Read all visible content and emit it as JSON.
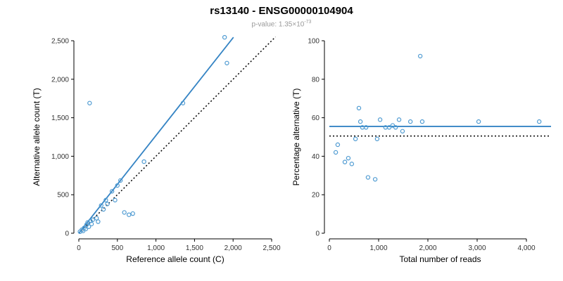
{
  "header": {
    "title": "rs13140 - ENSG00000104904",
    "pvalue_prefix": "p-value: ",
    "pvalue_base": "1.35×10",
    "pvalue_exponent": "-73"
  },
  "colors": {
    "accent_line": "#3584c4",
    "point_stroke": "#4f9bd2",
    "dotted_line": "#000000",
    "axis": "#000000",
    "tick_text": "#333333",
    "label_text": "#000000",
    "subtitle_text": "#999999"
  },
  "chart_data": [
    {
      "type": "scatter",
      "panel": "left",
      "xlabel": "Reference allele count (C)",
      "ylabel": "Alternative allele count (T)",
      "xlim": [
        0,
        2500
      ],
      "ylim": [
        0,
        2500
      ],
      "xticks": [
        0,
        500,
        1000,
        1500,
        2000,
        2500
      ],
      "yticks": [
        0,
        500,
        1000,
        1500,
        2000,
        2500
      ],
      "grid": false,
      "legend": "none",
      "points": [
        [
          15,
          20
        ],
        [
          40,
          45
        ],
        [
          55,
          30
        ],
        [
          70,
          70
        ],
        [
          90,
          55
        ],
        [
          100,
          110
        ],
        [
          115,
          140
        ],
        [
          130,
          85
        ],
        [
          150,
          160
        ],
        [
          165,
          120
        ],
        [
          180,
          175
        ],
        [
          230,
          195
        ],
        [
          250,
          150
        ],
        [
          140,
          1690
        ],
        [
          290,
          360
        ],
        [
          320,
          310
        ],
        [
          350,
          430
        ],
        [
          370,
          380
        ],
        [
          430,
          545
        ],
        [
          470,
          430
        ],
        [
          500,
          620
        ],
        [
          540,
          685
        ],
        [
          590,
          270
        ],
        [
          650,
          240
        ],
        [
          700,
          255
        ],
        [
          845,
          930
        ],
        [
          1350,
          1690
        ],
        [
          1890,
          2545
        ],
        [
          1920,
          2210
        ]
      ],
      "regression_line": {
        "x1": 0,
        "y1": 0,
        "x2": 2005,
        "y2": 2545
      },
      "identity_line": {
        "x1": 0,
        "y1": 0,
        "x2": 2550,
        "y2": 2550
      }
    },
    {
      "type": "scatter",
      "panel": "right",
      "xlabel": "Total number of reads",
      "ylabel": "Percentage alternative (T)",
      "xlim": [
        0,
        4500
      ],
      "ylim": [
        0,
        100
      ],
      "xticks": [
        0,
        1000,
        2000,
        3000,
        4000
      ],
      "yticks": [
        0,
        20,
        40,
        60,
        80,
        100
      ],
      "grid": false,
      "legend": "none",
      "points": [
        [
          130,
          42
        ],
        [
          170,
          46
        ],
        [
          315,
          37
        ],
        [
          385,
          39
        ],
        [
          455,
          36
        ],
        [
          530,
          49
        ],
        [
          600,
          65
        ],
        [
          630,
          58
        ],
        [
          670,
          55
        ],
        [
          745,
          55
        ],
        [
          785,
          29
        ],
        [
          930,
          28
        ],
        [
          970,
          49
        ],
        [
          1030,
          59
        ],
        [
          1140,
          55
        ],
        [
          1215,
          55
        ],
        [
          1285,
          56
        ],
        [
          1345,
          55
        ],
        [
          1415,
          59
        ],
        [
          1485,
          53
        ],
        [
          1645,
          58
        ],
        [
          1845,
          92
        ],
        [
          1885,
          58
        ],
        [
          3030,
          58
        ],
        [
          4260,
          58
        ]
      ],
      "mean_line": {
        "y": 55.5
      },
      "expected_line": {
        "y": 50.5
      }
    }
  ]
}
